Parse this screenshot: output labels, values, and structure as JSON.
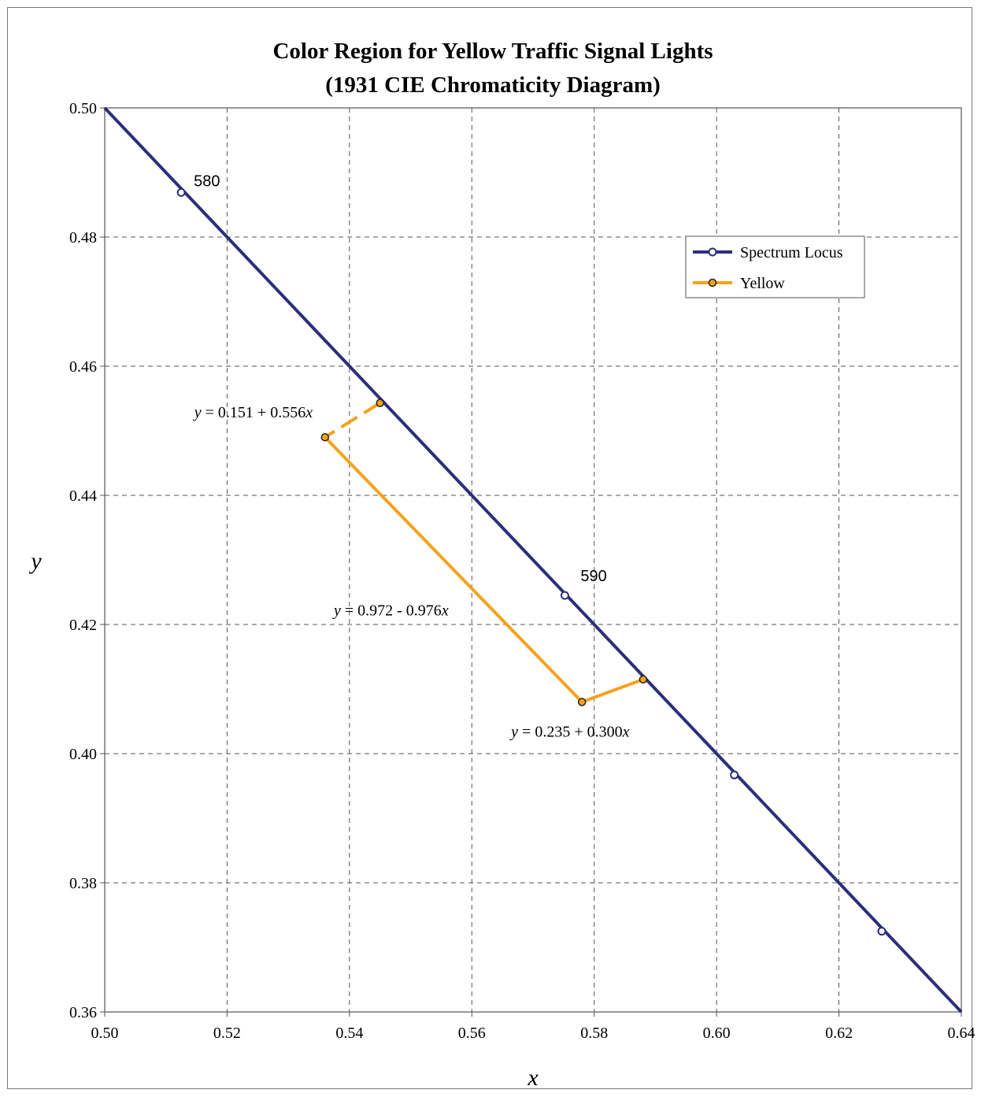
{
  "chart_data": {
    "type": "line",
    "title": [
      "Color Region for Yellow Traffic Signal Lights",
      "(1931 CIE Chromaticity Diagram)"
    ],
    "xlabel": "x",
    "ylabel": "y",
    "xlim": [
      0.5,
      0.64
    ],
    "ylim": [
      0.36,
      0.5
    ],
    "x_ticks": [
      "0.50",
      "0.52",
      "0.54",
      "0.56",
      "0.58",
      "0.60",
      "0.62",
      "0.64"
    ],
    "y_ticks": [
      "0.50",
      "0.48",
      "0.46",
      "0.44",
      "0.42",
      "0.40",
      "0.38",
      "0.36"
    ],
    "grid": true,
    "grid_style": "dashed",
    "legend_position": "top-right",
    "series": [
      {
        "name": "Spectrum Locus",
        "color": "#2b2f7a",
        "marker": "open-circle",
        "line": [
          [
            0.5,
            0.5
          ],
          [
            0.64,
            0.36
          ]
        ],
        "points": [
          [
            0.5125,
            0.4869
          ],
          [
            0.5752,
            0.4245
          ],
          [
            0.6029,
            0.3967
          ],
          [
            0.627,
            0.3725
          ]
        ]
      },
      {
        "name": "Yellow",
        "color": "#f5a21c",
        "marker": "filled-circle",
        "points": [
          [
            0.545,
            0.4543
          ],
          [
            0.536,
            0.449
          ],
          [
            0.578,
            0.408
          ],
          [
            0.588,
            0.4115
          ]
        ]
      }
    ],
    "annotations": {
      "wavelengths": [
        {
          "text": "580",
          "x": 0.5125,
          "y": 0.4869
        },
        {
          "text": "590",
          "x": 0.5752,
          "y": 0.4245
        }
      ],
      "equations": [
        {
          "lhs": "y",
          "mid": " = 0.151 + 0.556",
          "rhs": "x",
          "anchor_x": 0.536,
          "anchor_y": 0.449
        },
        {
          "lhs": "y",
          "mid": " = 0.972 - 0.976",
          "rhs": "x",
          "anchor_x": 0.557,
          "anchor_y": 0.428
        },
        {
          "lhs": "y",
          "mid": " = 0.235 + 0.300",
          "rhs": "x",
          "anchor_x": 0.578,
          "anchor_y": 0.408
        }
      ]
    }
  }
}
